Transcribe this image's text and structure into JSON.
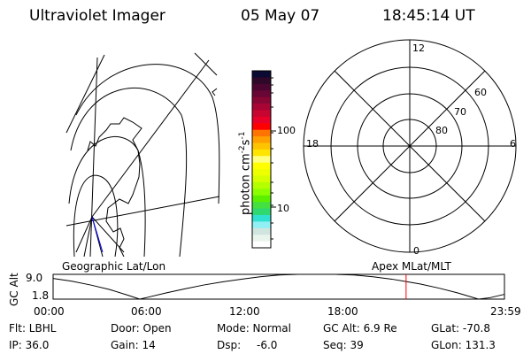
{
  "header": {
    "instrument": "Ultraviolet Imager",
    "date": "05 May 07",
    "time": "18:45:14 UT"
  },
  "colorbar": {
    "label": "photon cm",
    "label_exp1": "-2",
    "label_mid": "s",
    "label_exp2": "-1",
    "ticks": [
      "100",
      "10"
    ],
    "scale": "log",
    "colors": [
      "#0a0a32",
      "#2e0828",
      "#4a0630",
      "#680636",
      "#880634",
      "#a80434",
      "#c80430",
      "#e8002a",
      "#ff0000",
      "#ff7400",
      "#ffa000",
      "#ffc400",
      "#ffe400",
      "#ffff80",
      "#ffff00",
      "#eeff00",
      "#d6ff00",
      "#b4ff00",
      "#8cff00",
      "#5cf000",
      "#44e040",
      "#30d870",
      "#30e0d0",
      "#90f0f4",
      "#d0e4e0",
      "#e8f4ec",
      "#ffffff"
    ]
  },
  "polar_dial": {
    "mlt_labels": [
      "12",
      "6",
      "0",
      "18"
    ],
    "lat_labels": [
      "60",
      "70",
      "80"
    ]
  },
  "orbit_panel": {
    "left_label": "Geographic Lat/Lon",
    "right_label": "Apex MLat/MLT",
    "ylabel": "GC Alt",
    "yticks": [
      "9.0",
      "1.8"
    ],
    "xticks": [
      "00:00",
      "06:00",
      "12:00",
      "18:00",
      "23:59"
    ],
    "marker_color": "#ff0000"
  },
  "chart_data": {
    "type": "line",
    "title": "",
    "xlabel": "",
    "ylabel": "GC Alt",
    "xlim": [
      0,
      23.98
    ],
    "ylim": [
      1.8,
      9.0
    ],
    "x": [
      0,
      1,
      2,
      3,
      4,
      4.6,
      5,
      6,
      7,
      8,
      9,
      10,
      11,
      12,
      13,
      14,
      15,
      16,
      17,
      18,
      18.75,
      19.5,
      20.5,
      21.5,
      22.6,
      23.2,
      23.98
    ],
    "y": [
      7.8,
      7.0,
      5.9,
      4.6,
      2.9,
      1.8,
      2.3,
      3.6,
      4.8,
      5.9,
      6.8,
      7.6,
      8.3,
      8.8,
      9.0,
      9.0,
      9.0,
      8.8,
      8.3,
      7.6,
      6.9,
      6.2,
      5.0,
      3.6,
      1.8,
      2.2,
      3.2
    ],
    "marker_time": 18.754
  },
  "status": {
    "filter": "Flt: LBHL",
    "ip": "IP: 36.0",
    "door": "Door: Open",
    "gain": "Gain: 14",
    "mode": "Mode: Normal",
    "dsp_label": "Dsp:",
    "dsp_value": "-6.0",
    "gc_alt": "GC Alt: 6.9 Re",
    "seq": "Seq: 39",
    "glat": "GLat: -70.8",
    "glon": "GLon: 131.3"
  }
}
